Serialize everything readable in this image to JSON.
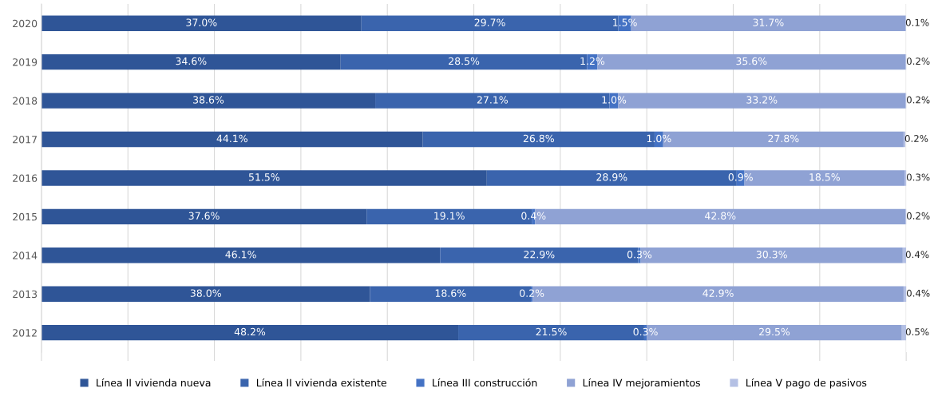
{
  "chart_data": {
    "type": "bar",
    "orientation": "horizontal",
    "stacked": true,
    "categories": [
      "2020",
      "2019",
      "2018",
      "2017",
      "2016",
      "2015",
      "2014",
      "2013",
      "2012"
    ],
    "series": [
      {
        "name": "Línea II vivienda nueva",
        "color": "#2f5597",
        "values": [
          37.0,
          34.6,
          38.6,
          44.1,
          51.5,
          37.6,
          46.1,
          38.0,
          48.2
        ],
        "value_labels": [
          "37.0%",
          "34.6%",
          "38.6%",
          "44.1%",
          "51.5%",
          "37.6%",
          "46.1%",
          "38.0%",
          "48.2%"
        ]
      },
      {
        "name": "Línea II vivienda existente",
        "color": "#3a64ad",
        "values": [
          29.7,
          28.5,
          27.1,
          26.8,
          28.9,
          19.1,
          22.9,
          18.6,
          21.5
        ],
        "value_labels": [
          "29.7%",
          "28.5%",
          "27.1%",
          "26.8%",
          "28.9%",
          "19.1%",
          "22.9%",
          "18.6%",
          "21.5%"
        ]
      },
      {
        "name": "Línea III construcción",
        "color": "#4472c4",
        "values": [
          1.5,
          1.2,
          1.0,
          1.0,
          0.9,
          0.4,
          0.3,
          0.2,
          0.3
        ],
        "value_labels": [
          "1.5%",
          "1.2%",
          "1.0%",
          "1.0%",
          "0.9%",
          "0.4%",
          "0.3%",
          "0.2%",
          "0.3%"
        ]
      },
      {
        "name": "Línea IV mejoramientos",
        "color": "#8fa2d4",
        "values": [
          31.7,
          35.6,
          33.2,
          27.8,
          18.5,
          42.8,
          30.3,
          42.9,
          29.5
        ],
        "value_labels": [
          "31.7%",
          "35.6%",
          "33.2%",
          "27.8%",
          "18.5%",
          "42.8%",
          "30.3%",
          "42.9%",
          "29.5%"
        ]
      },
      {
        "name": "Línea V pago de pasivos",
        "color": "#b4c0e4",
        "values": [
          0.1,
          0.2,
          0.2,
          0.2,
          0.3,
          0.2,
          0.4,
          0.4,
          0.5
        ],
        "value_labels": [
          "0.1%",
          "0.2%",
          "0.2%",
          "0.2%",
          "0.3%",
          "0.2%",
          "0.4%",
          "0.4%",
          "0.5%"
        ]
      }
    ],
    "xlim": [
      0,
      100
    ],
    "xticks": [
      {
        "value": 0,
        "label": null
      },
      {
        "value": 10,
        "label": null
      },
      {
        "value": 20,
        "label": null
      },
      {
        "value": 30,
        "label": null
      },
      {
        "value": 40,
        "label": null
      },
      {
        "value": 50,
        "label": null
      },
      {
        "value": 60,
        "label": null
      },
      {
        "value": 70,
        "label": null
      },
      {
        "value": 80,
        "label": null
      },
      {
        "value": 90,
        "label": null
      },
      {
        "value": 100,
        "label": null
      }
    ],
    "tick_labels": "y",
    "grid": "x",
    "legend": "bottom"
  }
}
